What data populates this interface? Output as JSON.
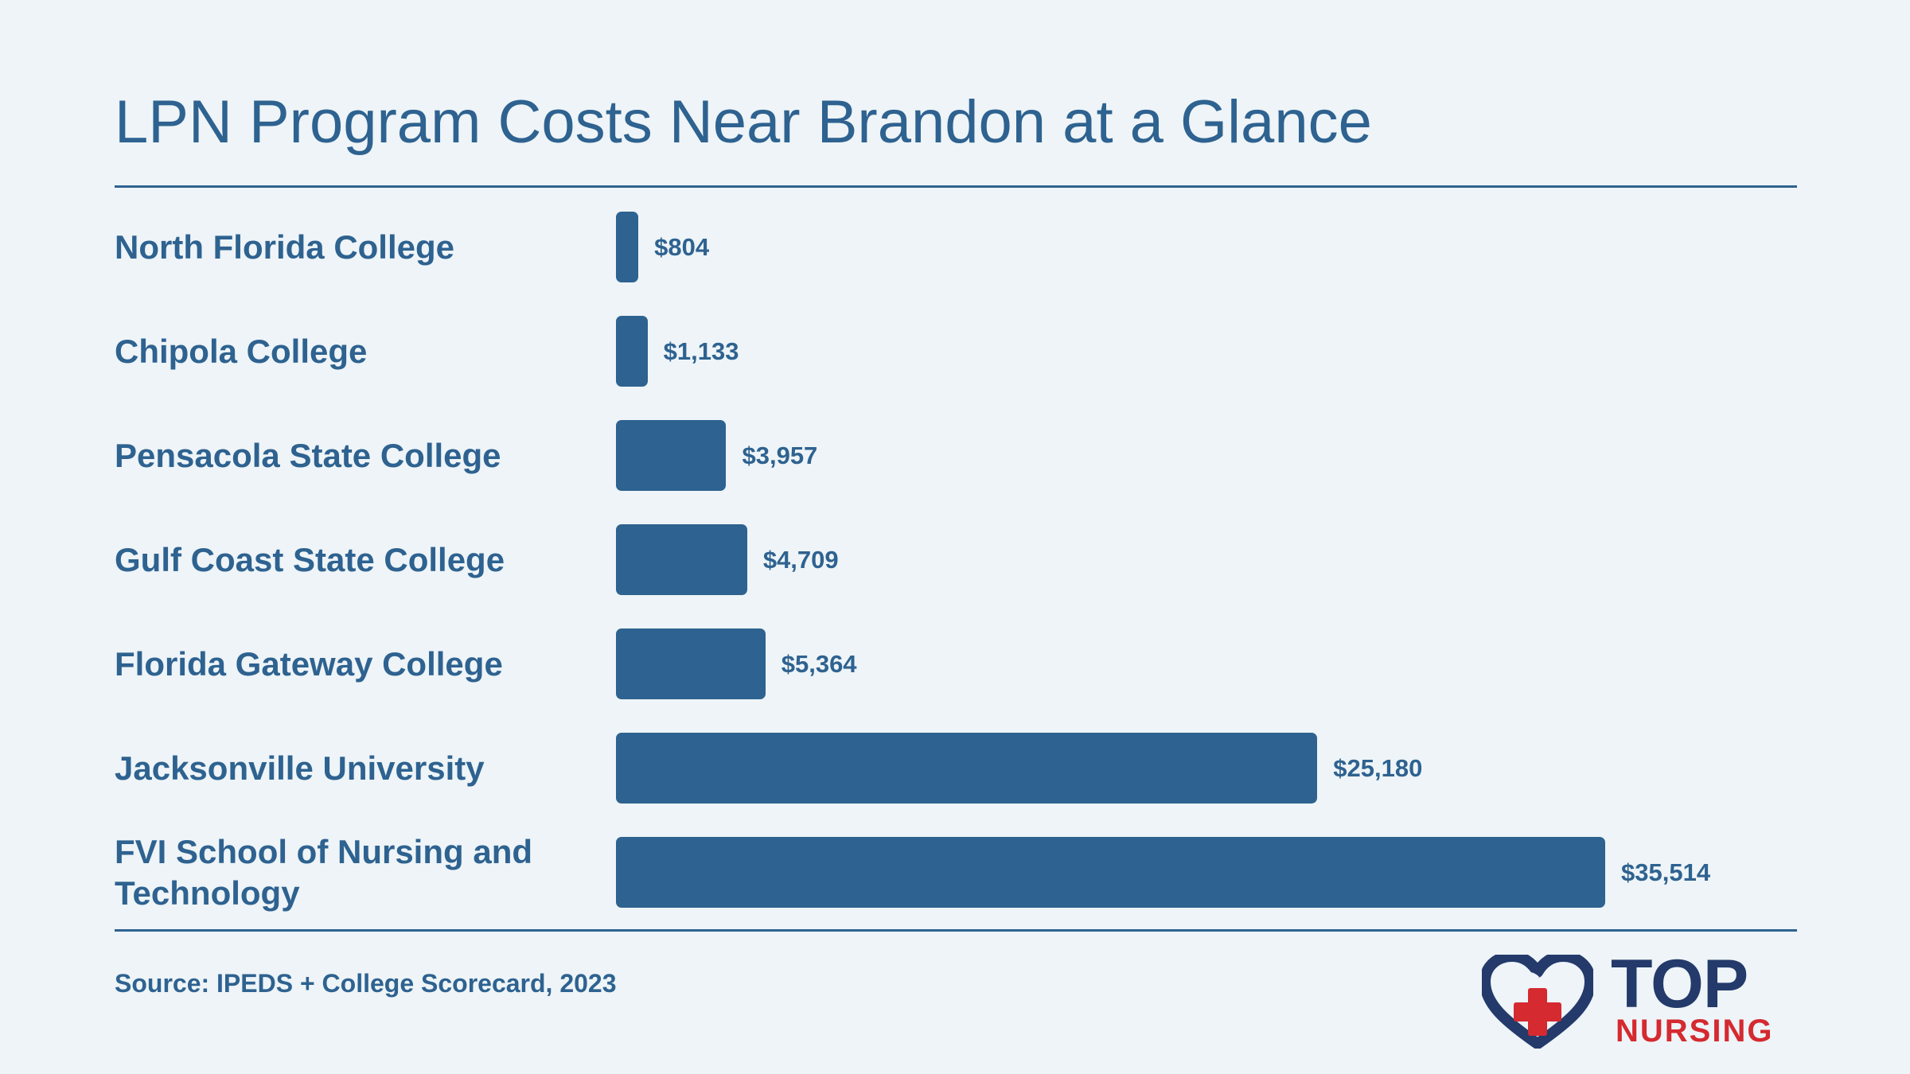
{
  "title": "LPN Program Costs Near Brandon at a Glance",
  "source": "Source: IPEDS + College Scorecard, 2023",
  "logo": {
    "word_top": "TOP",
    "word_bottom": "NURSING",
    "primary_color": "#233a6b",
    "accent_color": "#d42a30"
  },
  "colors": {
    "bar": "#2e6290",
    "background": "#eef4f7",
    "text": "#2e6290"
  },
  "chart_data": {
    "type": "bar",
    "orientation": "horizontal",
    "title": "LPN Program Costs Near Brandon at a Glance",
    "categories": [
      "North Florida College",
      "Chipola College",
      "Pensacola State College",
      "Gulf Coast State College",
      "Florida Gateway College",
      "Jacksonville University",
      "FVI School of Nursing and Technology"
    ],
    "values": [
      804,
      1133,
      3957,
      4709,
      5364,
      25180,
      35514
    ],
    "value_labels": [
      "$804",
      "$1,133",
      "$3,957",
      "$4,709",
      "$5,364",
      "$25,180",
      "$35,514"
    ],
    "xlabel": "",
    "ylabel": "",
    "grid": false,
    "legend": "none"
  }
}
